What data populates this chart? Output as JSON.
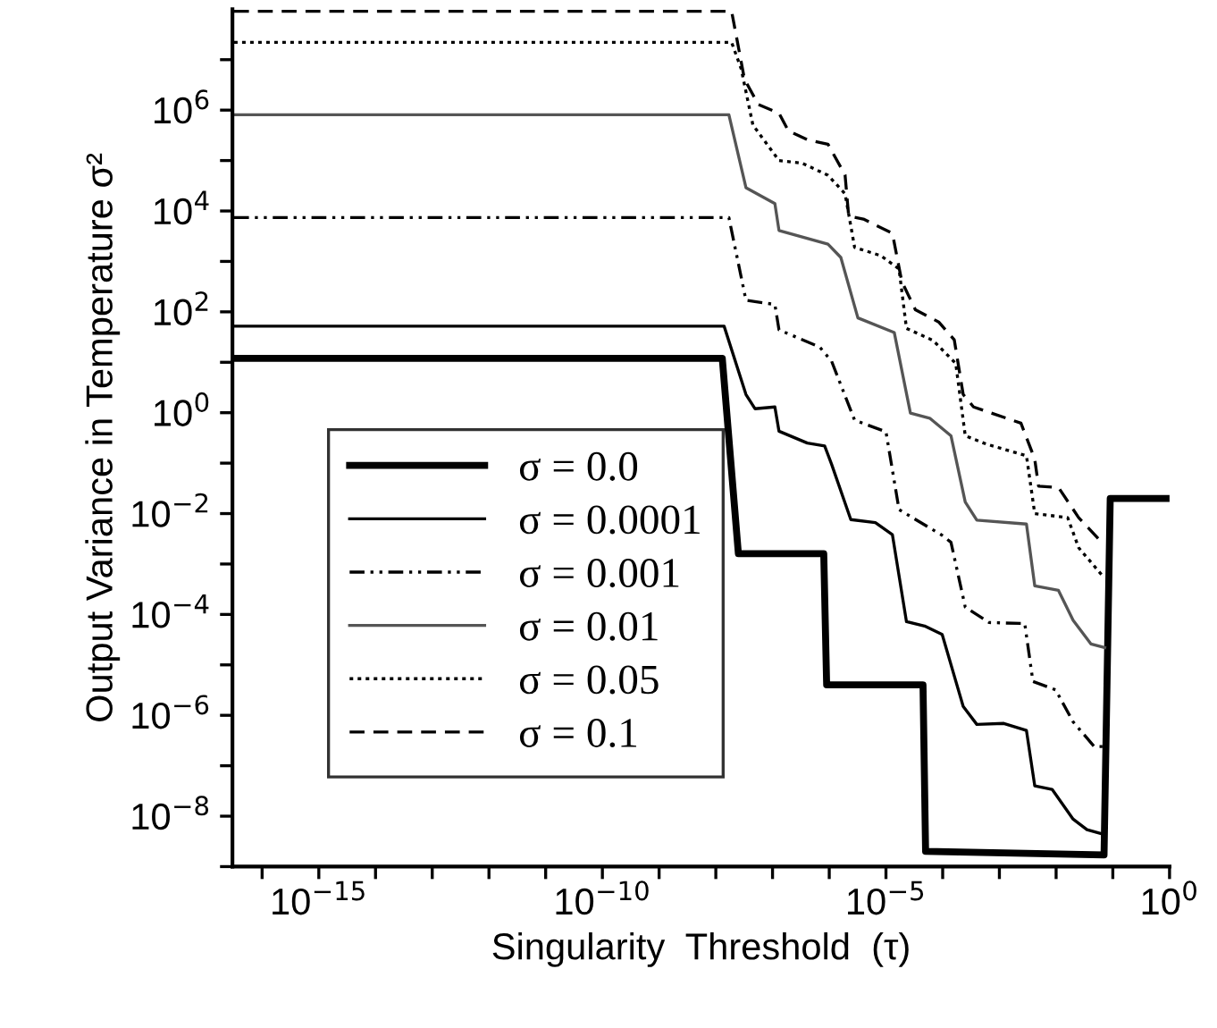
{
  "chart_data": {
    "type": "line",
    "xlabel": "Singularity  Threshold  (τ)",
    "ylabel": "Output Variance in Temperature σ²",
    "log": "xy",
    "xlim": [
      3e-17,
      1
    ],
    "ylim": [
      1e-09,
      100000000.0
    ],
    "xticks": [
      {
        "value": 1e-16,
        "label": null
      },
      {
        "value": 1e-15,
        "label": "10$^{−15}$"
      },
      {
        "value": 1e-14,
        "label": null
      },
      {
        "value": 1e-13,
        "label": null
      },
      {
        "value": 1e-12,
        "label": null
      },
      {
        "value": 1e-11,
        "label": null
      },
      {
        "value": 1e-10,
        "label": "10$^{−10}$"
      },
      {
        "value": 1e-09,
        "label": null
      },
      {
        "value": 1e-08,
        "label": null
      },
      {
        "value": 1e-07,
        "label": null
      },
      {
        "value": 1e-06,
        "label": null
      },
      {
        "value": 1e-05,
        "label": "10$^{−5}$"
      },
      {
        "value": 0.0001,
        "label": null
      },
      {
        "value": 0.001,
        "label": null
      },
      {
        "value": 0.01,
        "label": null
      },
      {
        "value": 0.1,
        "label": null
      },
      {
        "value": 1,
        "label": "10$^{0}$"
      }
    ],
    "yticks": [
      {
        "value": 1e-09,
        "label": null
      },
      {
        "value": 1e-08,
        "label": "10$^{−8}$"
      },
      {
        "value": 1e-07,
        "label": null
      },
      {
        "value": 1e-06,
        "label": "10$^{−6}$"
      },
      {
        "value": 1e-05,
        "label": null
      },
      {
        "value": 0.0001,
        "label": "10$^{−4}$"
      },
      {
        "value": 0.001,
        "label": null
      },
      {
        "value": 0.01,
        "label": "10$^{−2}$"
      },
      {
        "value": 0.1,
        "label": null
      },
      {
        "value": 1,
        "label": "10$^{0}$"
      },
      {
        "value": 10,
        "label": null
      },
      {
        "value": 100,
        "label": "10$^{2}$"
      },
      {
        "value": 1000,
        "label": null
      },
      {
        "value": 10000.0,
        "label": "10$^{4}$"
      },
      {
        "value": 100000.0,
        "label": null
      },
      {
        "value": 1000000.0,
        "label": "10$^{6}$"
      },
      {
        "value": 10000000.0,
        "label": null
      }
    ],
    "grid": false,
    "legend": "bottom left",
    "marker": "none",
    "series": [
      {
        "name": "σ = 0.0",
        "color": "#000000",
        "line_style": "solid",
        "x": [
          3.2e-17,
          1.3e-08,
          2.5e-08,
          8e-07,
          9e-07,
          4.5e-05,
          5e-05,
          0.07,
          0.09,
          1
        ],
        "values": [
          12,
          12,
          0.0016,
          0.0016,
          4e-06,
          4e-06,
          2e-09,
          1.7e-09,
          0.02,
          0.02
        ]
      },
      {
        "name": "σ = 0.0001",
        "color": "#000000",
        "line_style": "solid",
        "x": [
          3.2e-17,
          1.4e-08,
          3.4e-08,
          4.9e-08,
          1.1e-07,
          1.3e-07,
          4.1e-07,
          8.3e-07,
          1.1e-06,
          2.4e-06,
          6.5e-06,
          1.3e-05,
          2.3e-05,
          4.8e-05,
          9.8e-05,
          0.00023,
          0.0004,
          0.0012,
          0.003,
          0.0042,
          0.0085,
          0.02,
          0.035,
          0.072
        ],
        "values": [
          52,
          52,
          2.3,
          1.2,
          1.3,
          0.43,
          0.25,
          0.22,
          0.095,
          0.0076,
          0.0066,
          0.0038,
          7.2e-05,
          5.9e-05,
          4e-05,
          1.5e-06,
          6.6e-07,
          6.9e-07,
          5e-07,
          4e-08,
          3.4e-08,
          8.7e-09,
          5.4e-09,
          4.3e-09
        ]
      },
      {
        "name": "σ = 0.001",
        "color": "#000000",
        "line_style": "dashdot",
        "x": [
          3.2e-17,
          1.7e-08,
          3.4e-08,
          1.1e-07,
          1.3e-07,
          6.8e-07,
          1.1e-06,
          2.8e-06,
          1e-05,
          1.7e-05,
          9.8e-05,
          0.00014,
          0.00025,
          0.00066,
          0.0028,
          0.0039,
          0.0098,
          0.02,
          0.047,
          0.072
        ],
        "values": [
          7400,
          7400,
          170,
          140,
          44,
          20,
          10.5,
          0.71,
          0.42,
          0.012,
          0.0037,
          0.0027,
          0.00014,
          6.9e-05,
          6.6e-05,
          4.7e-06,
          3.2e-06,
          7.4e-07,
          2.4e-07,
          2.4e-07
        ]
      },
      {
        "name": "σ = 0.01",
        "color": "#555555",
        "line_style": "solid",
        "x": [
          3.2e-17,
          1.7e-08,
          3.4e-08,
          1.1e-07,
          1.3e-07,
          9.5e-07,
          1.6e-06,
          3.2e-06,
          1.4e-05,
          2.7e-05,
          5.9e-05,
          0.00014,
          0.00025,
          0.0004,
          0.003,
          0.0042,
          0.011,
          0.02,
          0.041,
          0.072
        ],
        "values": [
          810000.0,
          810000.0,
          29000.0,
          14000.0,
          4100,
          2200,
          1200,
          76,
          39,
          0.98,
          0.78,
          0.35,
          0.017,
          0.0074,
          0.0062,
          0.00037,
          0.0003,
          7.6e-05,
          2.6e-05,
          2.2e-05
        ]
      },
      {
        "name": "σ = 0.05",
        "color": "#000000",
        "line_style": "dotted",
        "x": [
          3.2e-17,
          1.9e-08,
          2.8e-08,
          4.5e-08,
          1.3e-07,
          3.3e-07,
          9.5e-07,
          1.9e-06,
          2.8e-06,
          8.1e-06,
          1.7e-05,
          2.3e-05,
          6.8e-05,
          0.00017,
          0.00025,
          0.00058,
          0.003,
          0.0042,
          0.016,
          0.025,
          0.068
        ],
        "values": [
          22000000.0,
          22000000.0,
          6600000.0,
          510000.0,
          100000.0,
          89000.0,
          51000.0,
          22000.0,
          1900,
          1300,
          710,
          47,
          27,
          9.5,
          0.35,
          0.24,
          0.14,
          0.01,
          0.0083,
          0.0021,
          0.00056
        ]
      },
      {
        "name": "σ = 0.1",
        "color": "#000000",
        "line_style": "dashed",
        "x": [
          3.2e-17,
          1.9e-08,
          3.2e-08,
          5.6e-08,
          1.3e-07,
          1.9e-07,
          4.1e-07,
          9.5e-07,
          1.9e-06,
          2.2e-06,
          4e-06,
          1.3e-05,
          1.9e-05,
          3.3e-05,
          8.5e-05,
          0.00016,
          0.00023,
          0.00035,
          0.0024,
          0.0042,
          0.0049,
          0.011,
          0.025,
          0.068
        ],
        "values": [
          91000000.0,
          91000000.0,
          4100000.0,
          1300000.0,
          870000.0,
          390000.0,
          260000.0,
          210000.0,
          52000.0,
          7900,
          6900,
          3600,
          400,
          110,
          63,
          28,
          2.3,
          1.3,
          0.62,
          0.12,
          0.035,
          0.033,
          0.0083,
          0.0025
        ]
      }
    ]
  }
}
